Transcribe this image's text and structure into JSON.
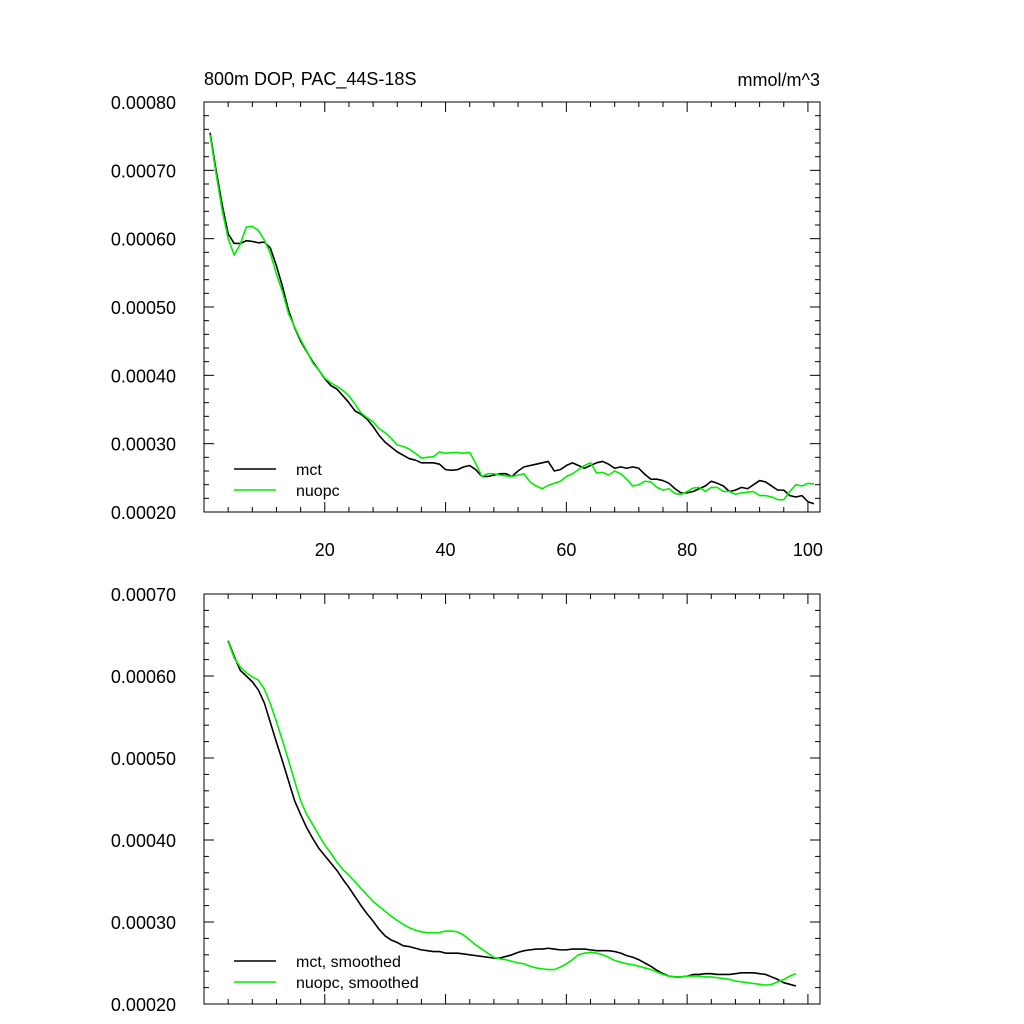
{
  "colors": {
    "mct": "#000000",
    "nuopc": "#00ee00",
    "frame": "#000000",
    "background": "#ffffff"
  },
  "chart_data": [
    {
      "type": "line",
      "title": "800m DOP, PAC_44S-18S",
      "units": "mmol/m^3",
      "xlabel": "",
      "ylabel": "",
      "xlim": [
        0,
        102
      ],
      "ylim": [
        0.0002,
        0.0008
      ],
      "xticks": [
        20,
        40,
        60,
        80,
        100
      ],
      "xtick_labels": [
        "20",
        "40",
        "60",
        "80",
        "100"
      ],
      "yticks": [
        0.0002,
        0.0003,
        0.0004,
        0.0005,
        0.0006,
        0.0007,
        0.0008
      ],
      "ytick_labels": [
        "0.00020",
        "0.00030",
        "0.00040",
        "0.00050",
        "0.00060",
        "0.00070",
        "0.00080"
      ],
      "legend_position": "bottom-left",
      "series": [
        {
          "name": "mct",
          "color": "#000000",
          "x": [
            1,
            2,
            3,
            4,
            5,
            6,
            7,
            8,
            9,
            10,
            11,
            12,
            13,
            14,
            15,
            16,
            17,
            18,
            19,
            20,
            21,
            22,
            23,
            24,
            25,
            26,
            27,
            28,
            29,
            30,
            31,
            32,
            33,
            34,
            35,
            36,
            37,
            38,
            39,
            40,
            41,
            42,
            43,
            44,
            45,
            46,
            47,
            48,
            49,
            50,
            51,
            52,
            53,
            54,
            55,
            56,
            57,
            58,
            59,
            60,
            61,
            62,
            63,
            64,
            65,
            66,
            67,
            68,
            69,
            70,
            71,
            72,
            73,
            74,
            75,
            76,
            77,
            78,
            79,
            80,
            81,
            82,
            83,
            84,
            85,
            86,
            87,
            88,
            89,
            90,
            91,
            92,
            93,
            94,
            95,
            96,
            97,
            98,
            99,
            100,
            101
          ],
          "y": [
            0.000755,
            0.0007,
            0.00065,
            0.000607,
            0.000593,
            0.000593,
            0.000597,
            0.000596,
            0.000594,
            0.000595,
            0.000586,
            0.00056,
            0.00053,
            0.000495,
            0.00047,
            0.00045,
            0.000435,
            0.00042,
            0.000408,
            0.000395,
            0.000385,
            0.00038,
            0.00037,
            0.00036,
            0.000348,
            0.000343,
            0.000336,
            0.000325,
            0.000312,
            0.000302,
            0.000295,
            0.000288,
            0.000283,
            0.000278,
            0.000276,
            0.000272,
            0.000272,
            0.000272,
            0.00027,
            0.000262,
            0.000261,
            0.000262,
            0.000266,
            0.000268,
            0.000262,
            0.000252,
            0.000252,
            0.000254,
            0.000256,
            0.000256,
            0.000252,
            0.00026,
            0.000266,
            0.000268,
            0.00027,
            0.000272,
            0.000274,
            0.00026,
            0.000262,
            0.000268,
            0.000272,
            0.000268,
            0.000264,
            0.000268,
            0.000272,
            0.000274,
            0.00027,
            0.000264,
            0.000266,
            0.000264,
            0.000266,
            0.000264,
            0.000255,
            0.000248,
            0.000248,
            0.000246,
            0.000242,
            0.000234,
            0.000228,
            0.000228,
            0.00023,
            0.000234,
            0.000238,
            0.000245,
            0.000242,
            0.000238,
            0.00023,
            0.000232,
            0.000236,
            0.000234,
            0.00024,
            0.000246,
            0.000244,
            0.000238,
            0.000232,
            0.000232,
            0.000224,
            0.000222,
            0.000224,
            0.000215,
            0.000212
          ]
        },
        {
          "name": "nuopc",
          "color": "#00ee00",
          "x": [
            1,
            2,
            3,
            4,
            5,
            6,
            7,
            8,
            9,
            10,
            11,
            12,
            13,
            14,
            15,
            16,
            17,
            18,
            19,
            20,
            21,
            22,
            23,
            24,
            25,
            26,
            27,
            28,
            29,
            30,
            31,
            32,
            33,
            34,
            35,
            36,
            37,
            38,
            39,
            40,
            41,
            42,
            43,
            44,
            45,
            46,
            47,
            48,
            49,
            50,
            51,
            52,
            53,
            54,
            55,
            56,
            57,
            58,
            59,
            60,
            61,
            62,
            63,
            64,
            65,
            66,
            67,
            68,
            69,
            70,
            71,
            72,
            73,
            74,
            75,
            76,
            77,
            78,
            79,
            80,
            81,
            82,
            83,
            84,
            85,
            86,
            87,
            88,
            89,
            90,
            91,
            92,
            93,
            94,
            95,
            96,
            97,
            98,
            99,
            100,
            101
          ],
          "y": [
            0.000752,
            0.000695,
            0.000642,
            0.0006,
            0.000576,
            0.000592,
            0.000617,
            0.000618,
            0.000612,
            0.000598,
            0.000578,
            0.000548,
            0.000522,
            0.00049,
            0.000471,
            0.000452,
            0.000436,
            0.000418,
            0.000408,
            0.000396,
            0.000389,
            0.000384,
            0.000378,
            0.00037,
            0.000358,
            0.000345,
            0.000338,
            0.000332,
            0.000322,
            0.000316,
            0.000308,
            0.000298,
            0.000296,
            0.000292,
            0.000286,
            0.000279,
            0.00028,
            0.000281,
            0.000288,
            0.000286,
            0.000287,
            0.000287,
            0.000286,
            0.000287,
            0.000271,
            0.000252,
            0.000256,
            0.000256,
            0.000254,
            0.000253,
            0.000252,
            0.000254,
            0.000256,
            0.000244,
            0.000238,
            0.000234,
            0.000239,
            0.000242,
            0.000245,
            0.000252,
            0.000256,
            0.000262,
            0.000268,
            0.000272,
            0.000257,
            0.000258,
            0.000254,
            0.00026,
            0.000256,
            0.000248,
            0.000238,
            0.00024,
            0.000245,
            0.000244,
            0.000236,
            0.000232,
            0.000234,
            0.000227,
            0.000226,
            0.00023,
            0.000235,
            0.000236,
            0.00023,
            0.000236,
            0.000236,
            0.00023,
            0.00023,
            0.000226,
            0.000228,
            0.000229,
            0.00023,
            0.000224,
            0.000224,
            0.000222,
            0.000218,
            0.000218,
            0.00023,
            0.00024,
            0.000238,
            0.000242,
            0.000241
          ]
        }
      ]
    },
    {
      "type": "line",
      "title": "",
      "units": "",
      "xlabel": "",
      "ylabel": "",
      "xlim": [
        0,
        102
      ],
      "ylim": [
        0.0002,
        0.0007
      ],
      "xticks": [
        20,
        40,
        60,
        80,
        100
      ],
      "xtick_labels": [],
      "yticks": [
        0.0002,
        0.0003,
        0.0004,
        0.0005,
        0.0006,
        0.0007
      ],
      "ytick_labels": [
        "0.00020",
        "0.00030",
        "0.00040",
        "0.00050",
        "0.00060",
        "0.00070"
      ],
      "legend_position": "bottom-left",
      "series": [
        {
          "name": "mct, smoothed",
          "color": "#000000",
          "x": [
            4,
            5,
            6,
            7,
            8,
            9,
            10,
            11,
            12,
            13,
            14,
            15,
            16,
            17,
            18,
            19,
            20,
            21,
            22,
            23,
            24,
            25,
            26,
            27,
            28,
            29,
            30,
            31,
            32,
            33,
            34,
            35,
            36,
            37,
            38,
            39,
            40,
            41,
            42,
            43,
            44,
            45,
            46,
            47,
            48,
            49,
            50,
            51,
            52,
            53,
            54,
            55,
            56,
            57,
            58,
            59,
            60,
            61,
            62,
            63,
            64,
            65,
            66,
            67,
            68,
            69,
            70,
            71,
            72,
            73,
            74,
            75,
            76,
            77,
            78,
            79,
            80,
            81,
            82,
            83,
            84,
            85,
            86,
            87,
            88,
            89,
            90,
            91,
            92,
            93,
            94,
            95,
            96,
            97,
            98
          ],
          "y": [
            0.000643,
            0.000624,
            0.000607,
            0.0006,
            0.000593,
            0.000583,
            0.000567,
            0.000543,
            0.000519,
            0.000496,
            0.000472,
            0.000448,
            0.000431,
            0.000415,
            0.000402,
            0.00039,
            0.000381,
            0.000372,
            0.000363,
            0.000352,
            0.000342,
            0.000331,
            0.00032,
            0.00031,
            0.000301,
            0.000291,
            0.000283,
            0.000278,
            0.000275,
            0.000271,
            0.00027,
            0.000268,
            0.000266,
            0.000265,
            0.000264,
            0.000264,
            0.000262,
            0.000262,
            0.000262,
            0.000261,
            0.00026,
            0.000259,
            0.000258,
            0.000257,
            0.000256,
            0.000256,
            0.000258,
            0.00026,
            0.000263,
            0.000265,
            0.000266,
            0.000267,
            0.000267,
            0.000268,
            0.000267,
            0.000266,
            0.000266,
            0.000267,
            0.000267,
            0.000267,
            0.000266,
            0.000265,
            0.000265,
            0.000265,
            0.000264,
            0.000262,
            0.000259,
            0.000257,
            0.000254,
            0.00025,
            0.000246,
            0.000241,
            0.000237,
            0.000234,
            0.000233,
            0.000233,
            0.000234,
            0.000236,
            0.000236,
            0.000237,
            0.000237,
            0.000236,
            0.000236,
            0.000236,
            0.000237,
            0.000238,
            0.000238,
            0.000238,
            0.000237,
            0.000236,
            0.000233,
            0.00023,
            0.000226,
            0.000224,
            0.000222
          ]
        },
        {
          "name": "nuopc, smoothed",
          "color": "#00ee00",
          "x": [
            4,
            5,
            6,
            7,
            8,
            9,
            10,
            11,
            12,
            13,
            14,
            15,
            16,
            17,
            18,
            19,
            20,
            21,
            22,
            23,
            24,
            25,
            26,
            27,
            28,
            29,
            30,
            31,
            32,
            33,
            34,
            35,
            36,
            37,
            38,
            39,
            40,
            41,
            42,
            43,
            44,
            45,
            46,
            47,
            48,
            49,
            50,
            51,
            52,
            53,
            54,
            55,
            56,
            57,
            58,
            59,
            60,
            61,
            62,
            63,
            64,
            65,
            66,
            67,
            68,
            69,
            70,
            71,
            72,
            73,
            74,
            75,
            76,
            77,
            78,
            79,
            80,
            81,
            82,
            83,
            84,
            85,
            86,
            87,
            88,
            89,
            90,
            91,
            92,
            93,
            94,
            95,
            96,
            97,
            98
          ],
          "y": [
            0.000642,
            0.000622,
            0.000611,
            0.000604,
            0.000599,
            0.000595,
            0.000584,
            0.000566,
            0.000544,
            0.000521,
            0.000497,
            0.000472,
            0.000448,
            0.000431,
            0.000419,
            0.000406,
            0.000394,
            0.000384,
            0.000373,
            0.000364,
            0.000357,
            0.000349,
            0.000341,
            0.000333,
            0.000325,
            0.000319,
            0.000313,
            0.000307,
            0.000302,
            0.000297,
            0.000293,
            0.00029,
            0.000288,
            0.000287,
            0.000287,
            0.000287,
            0.000289,
            0.000289,
            0.000288,
            0.000284,
            0.000278,
            0.000272,
            0.000267,
            0.000262,
            0.000257,
            0.000255,
            0.000254,
            0.000252,
            0.00025,
            0.000249,
            0.000246,
            0.000244,
            0.000243,
            0.000242,
            0.000242,
            0.000245,
            0.000249,
            0.000254,
            0.00026,
            0.000262,
            0.000263,
            0.000262,
            0.00026,
            0.000257,
            0.000253,
            0.000251,
            0.000249,
            0.000248,
            0.000246,
            0.000244,
            0.000242,
            0.000239,
            0.000236,
            0.000234,
            0.000233,
            0.000233,
            0.000234,
            0.000234,
            0.000234,
            0.000233,
            0.000233,
            0.000232,
            0.000231,
            0.00023,
            0.000228,
            0.000227,
            0.000226,
            0.000225,
            0.000224,
            0.000223,
            0.000224,
            0.000227,
            0.00023,
            0.000234,
            0.000237
          ]
        }
      ]
    }
  ]
}
